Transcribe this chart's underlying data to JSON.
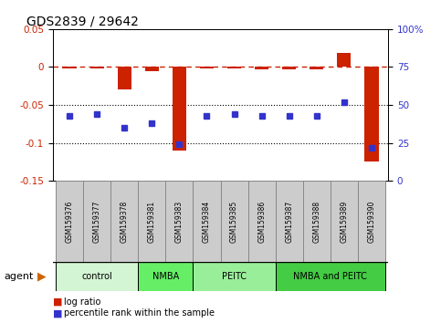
{
  "title": "GDS2839 / 29642",
  "samples": [
    "GSM159376",
    "GSM159377",
    "GSM159378",
    "GSM159381",
    "GSM159383",
    "GSM159384",
    "GSM159385",
    "GSM159386",
    "GSM159387",
    "GSM159388",
    "GSM159389",
    "GSM159390"
  ],
  "log_ratio": [
    -0.002,
    -0.002,
    -0.03,
    -0.005,
    -0.11,
    -0.002,
    -0.002,
    -0.003,
    -0.003,
    -0.003,
    0.018,
    -0.125
  ],
  "percentile_rank": [
    43,
    44,
    35,
    38,
    24,
    43,
    44,
    43,
    43,
    43,
    52,
    22
  ],
  "bar_color": "#cc2200",
  "dot_color": "#3333cc",
  "ref_line_color": "#cc2200",
  "grid_line_color": "#000000",
  "ylim_left": [
    -0.15,
    0.05
  ],
  "ylim_right": [
    0,
    100
  ],
  "yticks_left": [
    0.05,
    0.0,
    -0.05,
    -0.1,
    -0.15
  ],
  "ytick_labels_left": [
    "0.05",
    "0",
    "-0.05",
    "-0.1",
    "-0.15"
  ],
  "yticks_right": [
    100,
    75,
    50,
    25,
    0
  ],
  "ytick_labels_right": [
    "100%",
    "75",
    "50",
    "25",
    "0"
  ],
  "groups": [
    {
      "label": "control",
      "start": 0,
      "end": 3,
      "color": "#d4f5d4"
    },
    {
      "label": "NMBA",
      "start": 3,
      "end": 5,
      "color": "#66ee66"
    },
    {
      "label": "PEITC",
      "start": 5,
      "end": 8,
      "color": "#99ee99"
    },
    {
      "label": "NMBA and PEITC",
      "start": 8,
      "end": 12,
      "color": "#44cc44"
    }
  ],
  "agent_label": "agent",
  "legend_items": [
    {
      "label": "log ratio",
      "color": "#cc2200"
    },
    {
      "label": "percentile rank within the sample",
      "color": "#3333cc"
    }
  ],
  "sample_box_color": "#cccccc",
  "bar_width": 0.5
}
